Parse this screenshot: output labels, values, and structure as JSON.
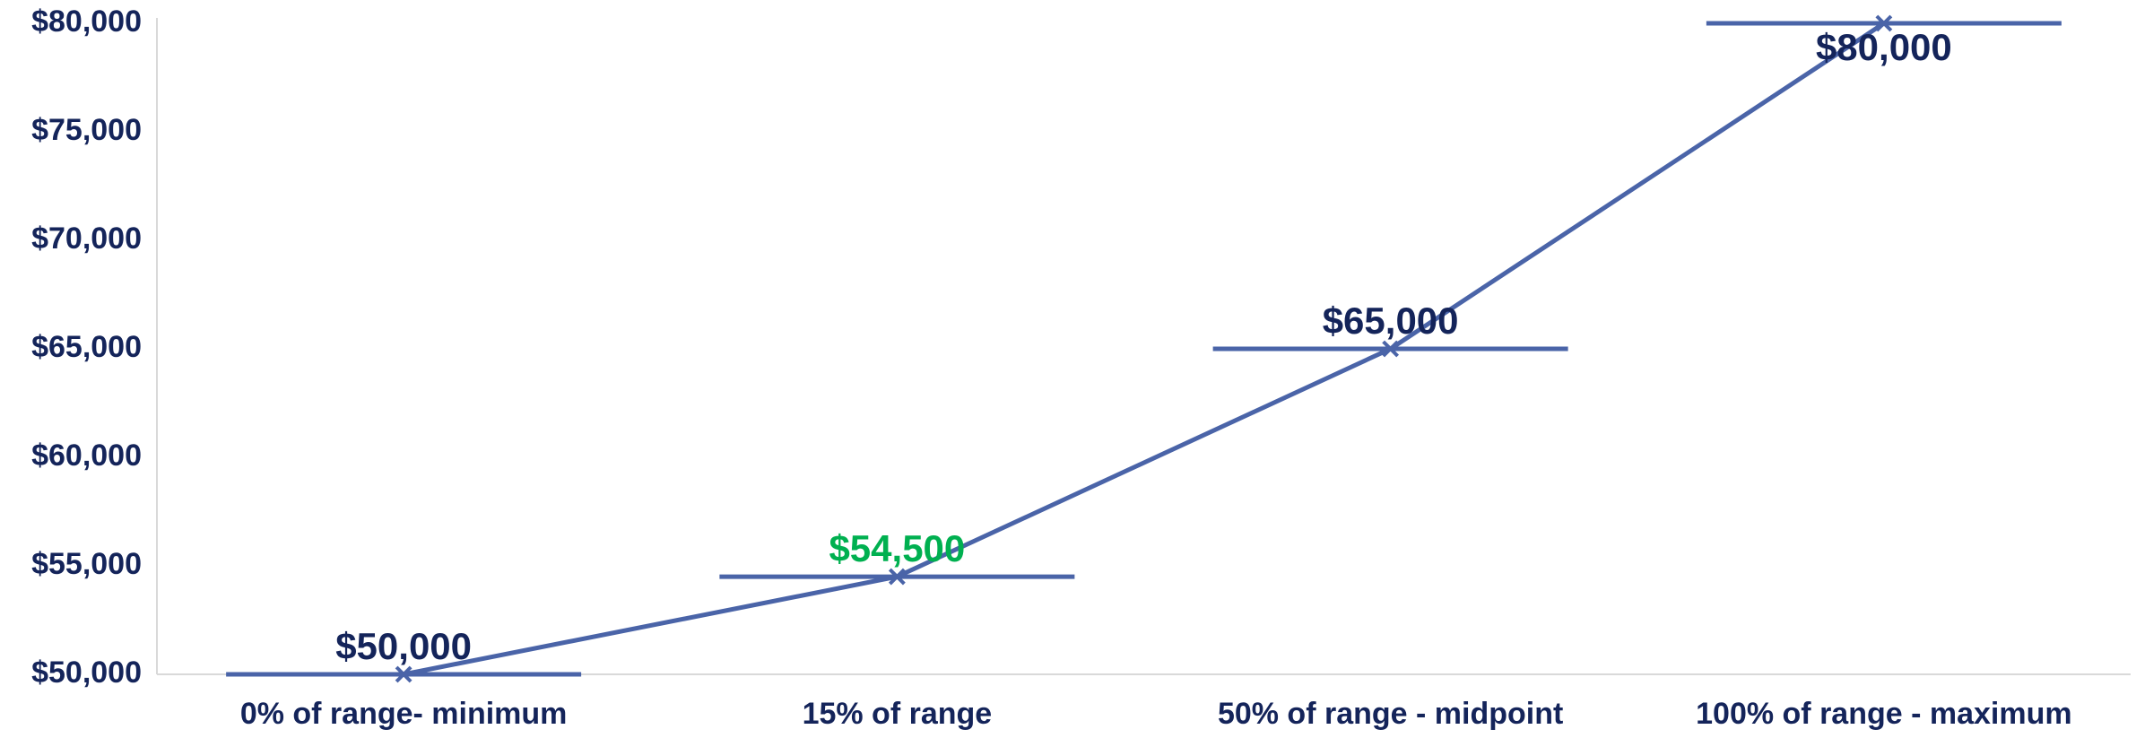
{
  "chart_data": {
    "type": "line",
    "categories": [
      "0% of range- minimum",
      "15% of range",
      "50% of range - midpoint",
      "100% of range - maximum"
    ],
    "series": [
      {
        "color": "#4a64a8",
        "values": [
          50000,
          54500,
          65000,
          80000
        ],
        "value_labels": [
          "$50,000",
          "$54,500",
          "$65,000",
          "$80,000"
        ],
        "value_label_colors": [
          "#14245a",
          "#00b050",
          "#14245a",
          "#14245a"
        ]
      }
    ],
    "ylim": [
      50000,
      80000
    ],
    "yticks": [
      {
        "value": 50000,
        "label": "$50,000"
      },
      {
        "value": 55000,
        "label": "$55,000"
      },
      {
        "value": 60000,
        "label": "$60,000"
      },
      {
        "value": 65000,
        "label": "$65,000"
      },
      {
        "value": 70000,
        "label": "$70,000"
      },
      {
        "value": 75000,
        "label": "$75,000"
      },
      {
        "value": 80000,
        "label": "$80,000"
      }
    ],
    "grid": false
  }
}
